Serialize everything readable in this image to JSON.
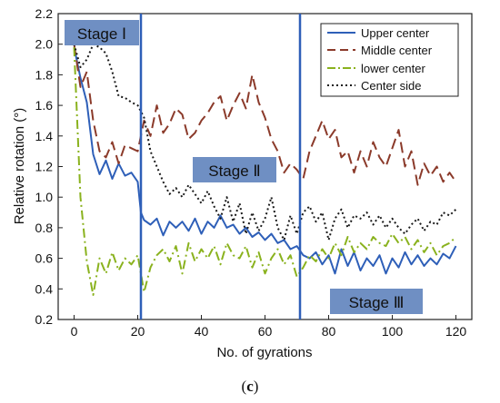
{
  "chart_data": {
    "type": "line",
    "xlabel": "No. of gyrations",
    "ylabel": "Relative rotation (°)",
    "xlim": [
      -5,
      125
    ],
    "ylim": [
      0.2,
      2.2
    ],
    "xticks": [
      0,
      20,
      40,
      60,
      80,
      100,
      120
    ],
    "yticks": [
      0.2,
      0.4,
      0.6,
      0.8,
      1.0,
      1.2,
      1.4,
      1.6,
      1.8,
      2.0,
      2.2
    ],
    "x_tick_labels": [
      "0",
      "20",
      "40",
      "60",
      "80",
      "100",
      "120"
    ],
    "y_tick_labels": [
      "0.2",
      "0.4",
      "0.6",
      "0.8",
      "1.0",
      "1.2",
      "1.4",
      "1.6",
      "1.8",
      "2.0",
      "2.2"
    ],
    "grid": false,
    "legend_placement": "top-right",
    "stage_lines": [
      21,
      71
    ],
    "stages": [
      {
        "label": "Stage Ⅰ",
        "x": 2,
        "y": 2.1
      },
      {
        "label": "Stage Ⅱ",
        "x": 46,
        "y": 1.24
      },
      {
        "label": "Stage Ⅲ",
        "x": 92,
        "y": 0.33
      }
    ],
    "series": [
      {
        "name": "Upper center",
        "color": "#2e5fb8",
        "dash": "solid",
        "x": [
          0,
          2,
          4,
          6,
          8,
          10,
          12,
          14,
          16,
          18,
          20,
          21,
          22,
          24,
          26,
          28,
          30,
          32,
          34,
          36,
          38,
          40,
          42,
          44,
          46,
          48,
          50,
          52,
          54,
          56,
          58,
          60,
          62,
          64,
          66,
          68,
          70,
          72,
          74,
          76,
          78,
          80,
          82,
          84,
          86,
          88,
          90,
          92,
          94,
          96,
          98,
          100,
          102,
          104,
          106,
          108,
          110,
          112,
          114,
          116,
          118,
          120
        ],
        "values": [
          1.98,
          1.78,
          1.62,
          1.28,
          1.15,
          1.24,
          1.12,
          1.22,
          1.14,
          1.16,
          1.1,
          0.9,
          0.85,
          0.82,
          0.86,
          0.75,
          0.84,
          0.8,
          0.84,
          0.78,
          0.86,
          0.76,
          0.84,
          0.8,
          0.88,
          0.8,
          0.82,
          0.76,
          0.8,
          0.74,
          0.77,
          0.72,
          0.76,
          0.7,
          0.72,
          0.66,
          0.68,
          0.62,
          0.6,
          0.64,
          0.56,
          0.62,
          0.5,
          0.66,
          0.55,
          0.64,
          0.52,
          0.6,
          0.55,
          0.62,
          0.5,
          0.6,
          0.54,
          0.64,
          0.56,
          0.62,
          0.55,
          0.6,
          0.56,
          0.63,
          0.6,
          0.68
        ]
      },
      {
        "name": "Middle center",
        "color": "#8b3a2a",
        "dash": "12,6",
        "x": [
          0,
          2,
          4,
          6,
          8,
          10,
          12,
          14,
          16,
          18,
          20,
          22,
          24,
          26,
          28,
          30,
          32,
          34,
          36,
          38,
          40,
          42,
          44,
          46,
          48,
          50,
          52,
          54,
          56,
          58,
          60,
          62,
          64,
          66,
          68,
          70,
          72,
          74,
          76,
          78,
          80,
          82,
          84,
          86,
          88,
          90,
          92,
          94,
          96,
          98,
          100,
          102,
          104,
          106,
          108,
          110,
          112,
          114,
          116,
          118,
          120
        ],
        "values": [
          2.0,
          1.72,
          1.82,
          1.5,
          1.3,
          1.26,
          1.36,
          1.22,
          1.34,
          1.32,
          1.3,
          1.5,
          1.4,
          1.6,
          1.42,
          1.48,
          1.58,
          1.54,
          1.38,
          1.42,
          1.5,
          1.55,
          1.62,
          1.66,
          1.5,
          1.6,
          1.68,
          1.58,
          1.8,
          1.62,
          1.52,
          1.38,
          1.3,
          1.16,
          1.22,
          1.18,
          1.12,
          1.3,
          1.4,
          1.5,
          1.38,
          1.44,
          1.26,
          1.3,
          1.16,
          1.3,
          1.2,
          1.36,
          1.26,
          1.2,
          1.32,
          1.44,
          1.2,
          1.3,
          1.08,
          1.22,
          1.14,
          1.2,
          1.1,
          1.16,
          1.1
        ]
      },
      {
        "name": "lower center",
        "color": "#8ab21e",
        "dash": "10,4,2,4",
        "x": [
          0,
          2,
          4,
          6,
          8,
          10,
          12,
          14,
          16,
          18,
          20,
          22,
          24,
          26,
          28,
          30,
          32,
          34,
          36,
          38,
          40,
          42,
          44,
          46,
          48,
          50,
          52,
          54,
          56,
          58,
          60,
          62,
          64,
          66,
          68,
          70,
          72,
          74,
          76,
          78,
          80,
          82,
          84,
          86,
          88,
          90,
          92,
          94,
          96,
          98,
          100,
          102,
          104,
          106,
          108,
          110,
          112,
          114,
          116,
          118,
          120
        ],
        "values": [
          1.98,
          1.0,
          0.58,
          0.36,
          0.6,
          0.5,
          0.64,
          0.52,
          0.6,
          0.56,
          0.62,
          0.38,
          0.54,
          0.62,
          0.66,
          0.58,
          0.68,
          0.5,
          0.7,
          0.58,
          0.66,
          0.6,
          0.68,
          0.56,
          0.7,
          0.62,
          0.6,
          0.68,
          0.54,
          0.64,
          0.5,
          0.6,
          0.66,
          0.56,
          0.62,
          0.48,
          0.54,
          0.62,
          0.58,
          0.66,
          0.6,
          0.7,
          0.62,
          0.74,
          0.64,
          0.7,
          0.66,
          0.74,
          0.7,
          0.68,
          0.76,
          0.7,
          0.74,
          0.66,
          0.72,
          0.64,
          0.7,
          0.62,
          0.68,
          0.7,
          0.74
        ]
      },
      {
        "name": "Center side",
        "color": "#1a1a1a",
        "dash": "2,3",
        "x": [
          0,
          2,
          4,
          6,
          8,
          10,
          12,
          14,
          16,
          18,
          20,
          22,
          24,
          26,
          28,
          30,
          32,
          34,
          36,
          38,
          40,
          42,
          44,
          46,
          48,
          50,
          52,
          54,
          56,
          58,
          60,
          62,
          64,
          66,
          68,
          70,
          72,
          74,
          76,
          78,
          80,
          82,
          84,
          86,
          88,
          90,
          92,
          94,
          96,
          98,
          100,
          102,
          104,
          106,
          108,
          110,
          112,
          114,
          116,
          118,
          120
        ],
        "values": [
          2.0,
          1.85,
          1.9,
          2.0,
          1.98,
          1.94,
          1.82,
          1.66,
          1.65,
          1.62,
          1.6,
          1.52,
          1.3,
          1.2,
          1.1,
          1.02,
          1.06,
          1.0,
          1.08,
          1.02,
          0.96,
          1.04,
          0.94,
          0.86,
          1.0,
          0.84,
          0.96,
          0.76,
          0.9,
          0.78,
          0.86,
          1.0,
          0.8,
          0.72,
          0.88,
          0.76,
          0.9,
          0.94,
          0.84,
          0.9,
          0.72,
          0.86,
          0.92,
          0.8,
          0.88,
          0.86,
          0.9,
          0.82,
          0.88,
          0.8,
          0.86,
          0.8,
          0.76,
          0.82,
          0.86,
          0.78,
          0.84,
          0.82,
          0.9,
          0.88,
          0.92
        ]
      }
    ]
  },
  "caption": {
    "open": "(",
    "letter": "c",
    "close": ")"
  }
}
